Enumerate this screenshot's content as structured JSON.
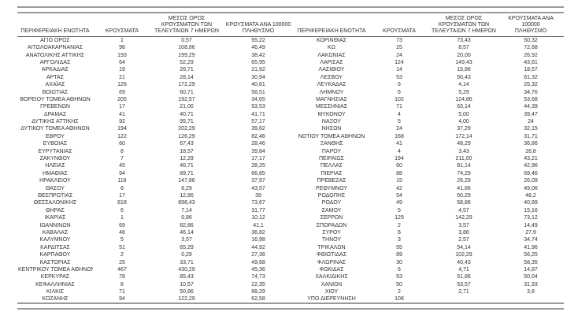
{
  "page": {
    "background": "#ffffff",
    "text_color": "#333333",
    "rule_color": "#9a9a9a",
    "header_rule_color": "#595959"
  },
  "table": {
    "column_headers": [
      "ΠΕΡΙΦΕΡΕΙΑΚΗ ΕΝΟΤΗΤΑ",
      "ΚΡΟΥΣΜΑΤΑ",
      "ΜΕΣΟΣ ΟΡΟΣ\nΚΡΟΥΣΜΑΤΩΝ ΤΩΝ\nΤΕΛΕΥΤΑΙΩΝ 7 ΗΜΕΡΩΝ",
      "ΚΡΟΥΣΜΑΤΑ ΑΝΑ 100000\nΠΛΗΘΥΣΜΟ"
    ],
    "left_rows": [
      [
        "ΑΓΙΟ ΟΡΟΣ",
        "1",
        "0,57",
        "55,22"
      ],
      [
        "ΑΙΤΩΛΟΑΚΑΡΝΑΝΙΑΣ",
        "98",
        "108,86",
        "46,49"
      ],
      [
        "ΑΝΑΤΟΛΙΚΗΣ ΑΤΤΙΚΗΣ",
        "193",
        "199,29",
        "38,42"
      ],
      [
        "ΑΡΓΟΛΙΔΑΣ",
        "64",
        "52,29",
        "65,95"
      ],
      [
        "ΑΡΚΑΔΙΑΣ",
        "19",
        "26,71",
        "21,92"
      ],
      [
        "ΑΡΤΑΣ",
        "21",
        "28,14",
        "30,94"
      ],
      [
        "ΑΧΑΪΑΣ",
        "126",
        "172,29",
        "40,61"
      ],
      [
        "ΒΟΙΩΤΙΑΣ",
        "69",
        "60,71",
        "58,51"
      ],
      [
        "ΒΟΡΕΙΟΥ ΤΟΜΕΑ ΑΘΗΝΩΝ",
        "205",
        "192,57",
        "34,65"
      ],
      [
        "ΓΡΕΒΕΝΩΝ",
        "17",
        "21,00",
        "53,53"
      ],
      [
        "ΔΡΑΜΑΣ",
        "41",
        "40,71",
        "41,71"
      ],
      [
        "ΔΥΤΙΚΗΣ ΑΤΤΙΚΗΣ",
        "92",
        "95,71",
        "57,17"
      ],
      [
        "ΔΥΤΙΚΟΥ ΤΟΜΕΑ ΑΘΗΝΩΝ",
        "194",
        "202,29",
        "39,62"
      ],
      [
        "ΕΒΡΟΥ",
        "122",
        "126,29",
        "82,46"
      ],
      [
        "ΕΥΒΟΙΑΣ",
        "60",
        "67,43",
        "28,46"
      ],
      [
        "ΕΥΡΥΤΑΝΙΑΣ",
        "8",
        "18,57",
        "39,84"
      ],
      [
        "ΖΑΚΥΝΘΟΥ",
        "7",
        "12,29",
        "17,17"
      ],
      [
        "ΗΛΕΙΑΣ",
        "45",
        "46,71",
        "28,25"
      ],
      [
        "ΗΜΑΘΙΑΣ",
        "94",
        "89,71",
        "66,85"
      ],
      [
        "ΗΡΑΚΛΕΙΟΥ",
        "116",
        "147,86",
        "37,97"
      ],
      [
        "ΘΑΣΟΥ",
        "6",
        "6,29",
        "43,57"
      ],
      [
        "ΘΕΣΠΡΩΤΙΑΣ",
        "17",
        "12,86",
        "39"
      ],
      [
        "ΘΕΣΣΑΛΟΝΙΚΗΣ",
        "818",
        "898,43",
        "73,67"
      ],
      [
        "ΘΗΡΑΣ",
        "6",
        "7,14",
        "31,77"
      ],
      [
        "ΙΚΑΡΙΑΣ",
        "1",
        "0,86",
        "10,12"
      ],
      [
        "ΙΩΑΝΝΙΝΩΝ",
        "69",
        "82,86",
        "41,1"
      ],
      [
        "ΚΑΒΑΛΑΣ",
        "46",
        "46,14",
        "36,82"
      ],
      [
        "ΚΑΛΥΜΝΟΥ",
        "5",
        "3,57",
        "16,98"
      ],
      [
        "ΚΑΡΔΙΤΣΑΣ",
        "51",
        "65,29",
        "44,92"
      ],
      [
        "ΚΑΡΠΑΘΟΥ",
        "2",
        "0,29",
        "27,36"
      ],
      [
        "ΚΑΣΤΟΡΙΑΣ",
        "25",
        "33,71",
        "49,68"
      ],
      [
        "ΚΕΝΤΡΙΚΟΥ ΤΟΜΕΑ ΑΘΗΝΩΝ",
        "467",
        "430,29",
        "45,36"
      ],
      [
        "ΚΕΡΚΥΡΑΣ",
        "78",
        "85,43",
        "74,73"
      ],
      [
        "ΚΕΦΑΛΛΗΝΙΑΣ",
        "8",
        "10,57",
        "22,35"
      ],
      [
        "ΚΙΛΚΙΣ",
        "71",
        "50,86",
        "88,29"
      ],
      [
        "ΚΟΖΑΝΗΣ",
        "94",
        "122,29",
        "62,58"
      ]
    ],
    "right_rows": [
      [
        "ΚΟΡΙΝΘΙΑΣ",
        "73",
        "73,43",
        "50,32"
      ],
      [
        "ΚΩ",
        "25",
        "8,57",
        "72,68"
      ],
      [
        "ΛΑΚΩΝΙΑΣ",
        "24",
        "20,00",
        "26,92"
      ],
      [
        "ΛΑΡΙΣΑΣ",
        "124",
        "149,43",
        "43,61"
      ],
      [
        "ΛΑΣΙΘΙΟΥ",
        "14",
        "15,86",
        "18,57"
      ],
      [
        "ΛΕΣΒΟΥ",
        "53",
        "50,43",
        "61,32"
      ],
      [
        "ΛΕΥΚΑΔΑΣ",
        "6",
        "4,14",
        "25,32"
      ],
      [
        "ΛΗΜΝΟΥ",
        "6",
        "5,29",
        "34,76"
      ],
      [
        "ΜΑΓΝΗΣΙΑΣ",
        "102",
        "124,86",
        "53,68"
      ],
      [
        "ΜΕΣΣΗΝΙΑΣ",
        "71",
        "63,14",
        "44,39"
      ],
      [
        "ΜΥΚΟΝΟΥ",
        "4",
        "5,00",
        "39,47"
      ],
      [
        "ΝΑΞΟΥ",
        "5",
        "4,00",
        "24"
      ],
      [
        "ΝΗΣΩΝ",
        "24",
        "37,29",
        "32,15"
      ],
      [
        "ΝΟΤΙΟΥ ΤΟΜΕΑ ΑΘΗΝΩΝ",
        "168",
        "172,14",
        "31,71"
      ],
      [
        "ΞΑΝΘΗΣ",
        "41",
        "48,29",
        "36,86"
      ],
      [
        "ΠΑΡΟΥ",
        "4",
        "3,43",
        "26,8"
      ],
      [
        "ΠΕΙΡΑΙΩΣ",
        "194",
        "211,00",
        "43,21"
      ],
      [
        "ΠΕΛΛΑΣ",
        "60",
        "81,14",
        "42,96"
      ],
      [
        "ΠΙΕΡΙΑΣ",
        "88",
        "74,29",
        "69,46"
      ],
      [
        "ΠΡΕΒΕΖΑΣ",
        "15",
        "26,29",
        "26,09"
      ],
      [
        "ΡΕΘΥΜΝΟΥ",
        "42",
        "41,86",
        "49,06"
      ],
      [
        "ΡΟΔΟΠΗΣ",
        "54",
        "50,29",
        "48,2"
      ],
      [
        "ΡΟΔΟΥ",
        "49",
        "58,86",
        "40,89"
      ],
      [
        "ΣΑΜΟΥ",
        "5",
        "4,57",
        "15,16"
      ],
      [
        "ΣΕΡΡΩΝ",
        "129",
        "142,29",
        "73,12"
      ],
      [
        "ΣΠΟΡΑΔΩΝ",
        "2",
        "3,57",
        "14,49"
      ],
      [
        "ΣΥΡΟΥ",
        "6",
        "3,86",
        "27,9"
      ],
      [
        "ΤΗΝΟΥ",
        "3",
        "2,57",
        "34,74"
      ],
      [
        "ΤΡΙΚΑΛΩΝ",
        "55",
        "54,14",
        "41,96"
      ],
      [
        "ΦΘΙΩΤΙΔΑΣ",
        "89",
        "102,29",
        "56,25"
      ],
      [
        "ΦΛΩΡΙΝΑΣ",
        "30",
        "40,43",
        "58,35"
      ],
      [
        "ΦΩΚΙΔΑΣ",
        "6",
        "4,71",
        "14,87"
      ],
      [
        "ΧΑΛΚΙΔΙΚΗΣ",
        "53",
        "51,86",
        "50,04"
      ],
      [
        "ΧΑΝΙΩΝ",
        "50",
        "53,57",
        "31,93"
      ],
      [
        "ΧΙΟΥ",
        "2",
        "2,71",
        "3,8"
      ],
      [
        "ΥΠΟ ΔΙΕΡΕΥΝΗΣΗ",
        "108",
        "",
        ""
      ]
    ]
  }
}
